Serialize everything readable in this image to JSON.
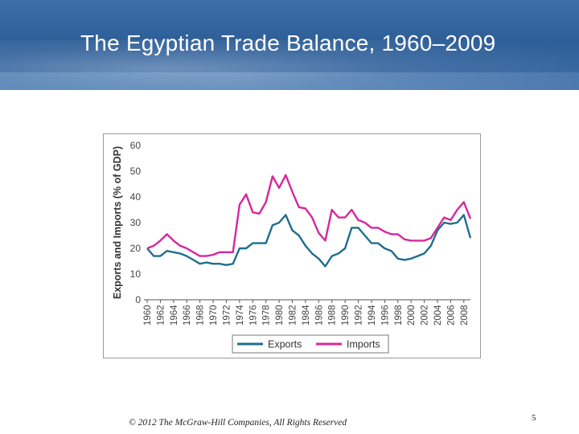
{
  "slide": {
    "title": "The Egyptian Trade Balance, 1960–2009",
    "footer": "© 2012 The McGraw-Hill Companies, All Rights Reserved",
    "page_number": "5"
  },
  "colors": {
    "exports": "#1f6e8c",
    "imports": "#d4289c"
  },
  "chart_data": {
    "type": "line",
    "title": "",
    "xlabel": "",
    "ylabel": "Exports and Imports (% of GDP)",
    "xlim": [
      1960,
      2009
    ],
    "ylim": [
      0,
      60
    ],
    "yticks": [
      0,
      10,
      20,
      30,
      40,
      50,
      60
    ],
    "xtick_labels": [
      "1960",
      "1962",
      "1964",
      "1966",
      "1968",
      "1970",
      "1972",
      "1974",
      "1976",
      "1978",
      "1980",
      "1982",
      "1984",
      "1986",
      "1988",
      "1990",
      "1992",
      "1994",
      "1996",
      "1998",
      "2000",
      "2002",
      "2004",
      "2006",
      "2008"
    ],
    "grid": false,
    "legend": "bottom",
    "x": [
      1960,
      1961,
      1962,
      1963,
      1964,
      1965,
      1966,
      1967,
      1968,
      1969,
      1970,
      1971,
      1972,
      1973,
      1974,
      1975,
      1976,
      1977,
      1978,
      1979,
      1980,
      1981,
      1982,
      1983,
      1984,
      1985,
      1986,
      1987,
      1988,
      1989,
      1990,
      1991,
      1992,
      1993,
      1994,
      1995,
      1996,
      1997,
      1998,
      1999,
      2000,
      2001,
      2002,
      2003,
      2004,
      2005,
      2006,
      2007,
      2008,
      2009
    ],
    "series": [
      {
        "name": "Exports",
        "values": [
          20,
          17,
          17,
          19,
          18.5,
          18,
          17,
          15.5,
          14,
          14.5,
          14,
          14,
          13.5,
          14,
          20,
          20,
          22,
          22,
          22,
          29,
          30,
          33,
          27,
          25,
          21,
          18,
          16,
          13,
          17,
          18,
          20,
          28,
          28,
          25,
          22,
          22,
          20,
          19,
          16,
          15.5,
          16,
          17,
          18,
          21,
          27,
          30,
          29.5,
          30,
          33,
          24
        ]
      },
      {
        "name": "Imports",
        "values": [
          20,
          21,
          23,
          25.5,
          23,
          21,
          20,
          18.5,
          17,
          17,
          17.5,
          18.5,
          18.5,
          18.5,
          37,
          41,
          34,
          33.5,
          38,
          48,
          43.5,
          48.5,
          42,
          36,
          35.5,
          32,
          26,
          23,
          35,
          32,
          32,
          35,
          31,
          30,
          28,
          28,
          26.5,
          25.5,
          25.5,
          23.5,
          23,
          23,
          23,
          24,
          28,
          32,
          31,
          35,
          38,
          31.5
        ]
      }
    ]
  }
}
